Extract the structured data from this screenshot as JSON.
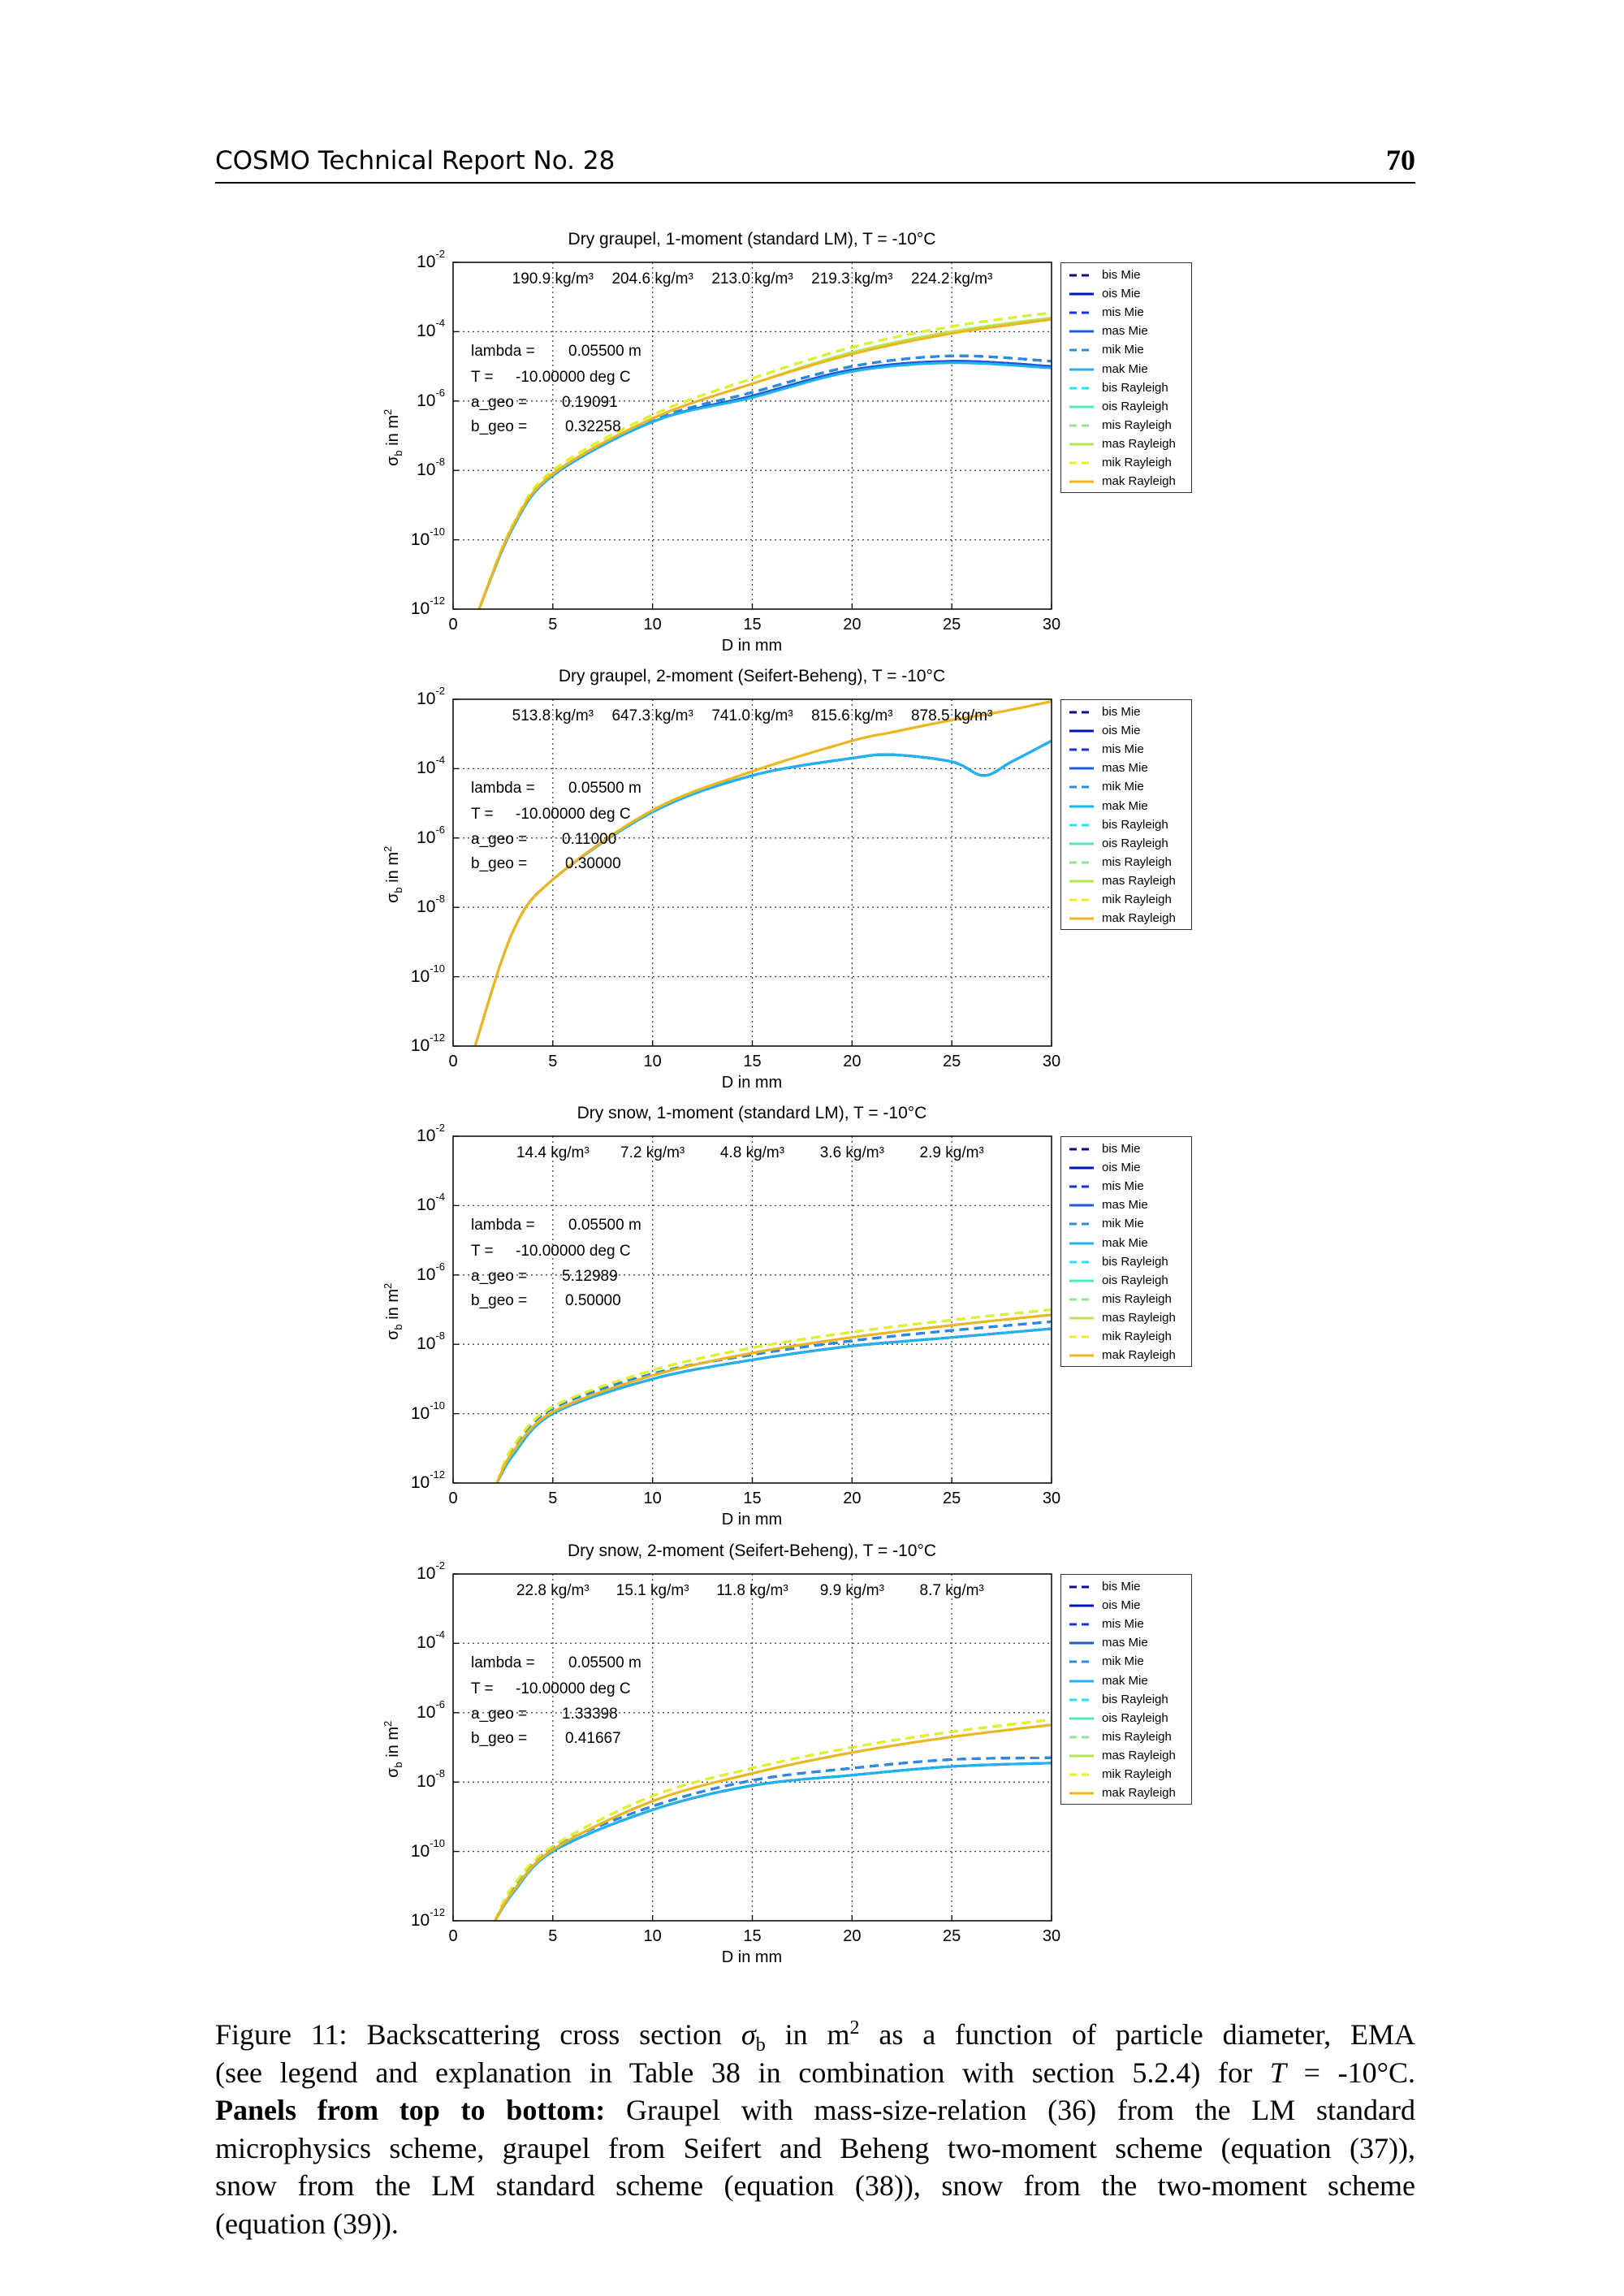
{
  "header": {
    "title": "COSMO Technical Report No. 28",
    "page_number": "70"
  },
  "caption": {
    "l1_label": "Figure 11:",
    "l1_a": "Backscattering cross section",
    "l1_sym": "σ",
    "l1_sub": "b",
    "l1_b": "in m",
    "l1_sup": "2",
    "l1_c": "as a function of particle diameter, EMA",
    "l2_a": "(see legend and explanation in Table 38 in combination with section 5.2.4) for",
    "l2_var": "T",
    "l2_b": "= -10°C.",
    "l3_bold": "Panels from top to bottom:",
    "l3_rest": "Graupel with mass-size-relation (36) from the LM standard",
    "l4": "microphysics scheme, graupel from Seifert and Beheng two-moment scheme (equation (37)),",
    "l5": "snow from the LM standard scheme (equation (38)), snow from the two-moment scheme",
    "l6": "(equation (39))."
  },
  "series_styles": [
    {
      "name": "bis Mie",
      "color": "#0a0a8c",
      "dashed": true
    },
    {
      "name": "ois Mie",
      "color": "#0014b4",
      "dashed": false
    },
    {
      "name": "mis Mie",
      "color": "#1432e6",
      "dashed": true
    },
    {
      "name": "mas Mie",
      "color": "#1e5adc",
      "dashed": false
    },
    {
      "name": "mik Mie",
      "color": "#288ce0",
      "dashed": true
    },
    {
      "name": "mak Mie",
      "color": "#1eb4f0",
      "dashed": false
    },
    {
      "name": "bis Rayleigh",
      "color": "#1ee6f0",
      "dashed": true
    },
    {
      "name": "ois Rayleigh",
      "color": "#50e6c0",
      "dashed": false
    },
    {
      "name": "mis Rayleigh",
      "color": "#8ce68c",
      "dashed": true
    },
    {
      "name": "mas Rayleigh",
      "color": "#b4e650",
      "dashed": false
    },
    {
      "name": "mik Rayleigh",
      "color": "#e6f01e",
      "dashed": true
    },
    {
      "name": "mak Rayleigh",
      "color": "#f0b41e",
      "dashed": false
    }
  ],
  "chart_data": [
    {
      "type": "line",
      "title": "Dry graupel, 1-moment (standard LM), T = -10°C",
      "xlabel": "D in mm",
      "ylabel": {
        "sym": "σ",
        "sub": "b",
        "text": " in m",
        "sup": "2"
      },
      "xlim": [
        0,
        30
      ],
      "ylim": [
        1e-12,
        0.01
      ],
      "yscale": "log",
      "grid": true,
      "legend": "outside-right",
      "x_ticks": [
        "0",
        "5",
        "10",
        "15",
        "20",
        "25",
        "30"
      ],
      "y_tick_base": "10",
      "y_tick_exponents": [
        "-2",
        "-4",
        "-6",
        "-8",
        "-10",
        "-12"
      ],
      "densities": [
        "190.9 kg/m³",
        "204.6 kg/m³",
        "213.0 kg/m³",
        "219.3 kg/m³",
        "224.2 kg/m³"
      ],
      "params": [
        {
          "label": "lambda =",
          "value": "0.05500 m"
        },
        {
          "label": "T =",
          "value": "-10.00000 deg C"
        },
        {
          "label": "a_geo =",
          "value": "0.19091"
        },
        {
          "label": "b_geo =",
          "value": "0.32258"
        }
      ],
      "x": [
        1.3,
        3,
        5,
        10,
        15,
        20,
        25,
        30
      ],
      "series": [
        {
          "name": "bis Mie",
          "y": [
            1e-12,
            2.51e-10,
            7.94e-09,
            2.82e-07,
            1.78e-06,
            1e-05,
            2e-05,
            1.41e-05
          ]
        },
        {
          "name": "ois Mie",
          "y": [
            1e-12,
            2.24e-10,
            7.08e-09,
            2.51e-07,
            1.41e-06,
            7.94e-06,
            1.41e-05,
            1e-05
          ]
        },
        {
          "name": "mis Mie",
          "y": [
            1e-12,
            2.51e-10,
            7.94e-09,
            2.82e-07,
            1.78e-06,
            1e-05,
            2e-05,
            1.41e-05
          ]
        },
        {
          "name": "mas Mie",
          "y": [
            1e-12,
            2.24e-10,
            7.08e-09,
            2.51e-07,
            1.41e-06,
            7.94e-06,
            1.41e-05,
            1e-05
          ]
        },
        {
          "name": "mik Mie",
          "y": [
            1e-12,
            2.51e-10,
            7.94e-09,
            2.82e-07,
            1.78e-06,
            1e-05,
            2e-05,
            1.41e-05
          ]
        },
        {
          "name": "mak Mie",
          "y": [
            1e-12,
            2.24e-10,
            7.08e-09,
            2.51e-07,
            1.26e-06,
            7.08e-06,
            1.26e-05,
            8.91e-06
          ]
        },
        {
          "name": "bis Rayleigh",
          "y": [
            1e-12,
            2.82e-10,
            1e-08,
            3.98e-07,
            4.47e-06,
            3.55e-05,
            0.000141,
            0.000355
          ]
        },
        {
          "name": "ois Rayleigh",
          "y": [
            1e-12,
            2.51e-10,
            7.94e-09,
            3.16e-07,
            3.16e-06,
            2.51e-05,
            0.0001,
            0.000251
          ]
        },
        {
          "name": "mis Rayleigh",
          "y": [
            1e-12,
            2.82e-10,
            1e-08,
            3.98e-07,
            4.47e-06,
            3.55e-05,
            0.000141,
            0.000355
          ]
        },
        {
          "name": "mas Rayleigh",
          "y": [
            1e-12,
            2.51e-10,
            7.94e-09,
            3.16e-07,
            3.16e-06,
            2.51e-05,
            0.0001,
            0.000251
          ]
        },
        {
          "name": "mik Rayleigh",
          "y": [
            1e-12,
            2.82e-10,
            1e-08,
            3.98e-07,
            4.47e-06,
            3.55e-05,
            0.000141,
            0.000355
          ]
        },
        {
          "name": "mak Rayleigh",
          "y": [
            1e-12,
            2.51e-10,
            7.94e-09,
            3.16e-07,
            3.16e-06,
            2.24e-05,
            8.91e-05,
            0.000224
          ]
        }
      ]
    },
    {
      "type": "line",
      "title": "Dry graupel, 2-moment (Seifert-Beheng), T = -10°C",
      "xlabel": "D in mm",
      "ylabel": {
        "sym": "σ",
        "sub": "b",
        "text": " in m",
        "sup": "2"
      },
      "xlim": [
        0,
        30
      ],
      "ylim": [
        1e-12,
        0.01
      ],
      "yscale": "log",
      "grid": true,
      "legend": "outside-right",
      "x_ticks": [
        "0",
        "5",
        "10",
        "15",
        "20",
        "25",
        "30"
      ],
      "y_tick_base": "10",
      "y_tick_exponents": [
        "-2",
        "-4",
        "-6",
        "-8",
        "-10",
        "-12"
      ],
      "densities": [
        "513.8 kg/m³",
        "647.3 kg/m³",
        "741.0 kg/m³",
        "815.6 kg/m³",
        "878.5 kg/m³"
      ],
      "params": [
        {
          "label": "lambda =",
          "value": "0.05500 m"
        },
        {
          "label": "T =",
          "value": "-10.00000 deg C"
        },
        {
          "label": "a_geo =",
          "value": "0.11000"
        },
        {
          "label": "b_geo =",
          "value": "0.30000"
        }
      ],
      "x": [
        1.1,
        3,
        5,
        10,
        15,
        20,
        22,
        25,
        26.6,
        28,
        30
      ],
      "series": [
        {
          "name": "bis Mie",
          "y": [
            1e-12,
            2e-09,
            6.31e-08,
            5.62e-06,
            6.31e-05,
            0.0002,
            0.000251,
            0.000158,
            6.31e-05,
            0.000158,
            0.000631
          ]
        },
        {
          "name": "ois Mie",
          "y": [
            1e-12,
            2e-09,
            6.31e-08,
            5.62e-06,
            6.31e-05,
            0.0002,
            0.000251,
            0.000158,
            6.31e-05,
            0.000158,
            0.000631
          ]
        },
        {
          "name": "mis Mie",
          "y": [
            1e-12,
            2e-09,
            6.31e-08,
            5.62e-06,
            6.31e-05,
            0.0002,
            0.000251,
            0.000158,
            6.31e-05,
            0.000158,
            0.000631
          ]
        },
        {
          "name": "mas Mie",
          "y": [
            1e-12,
            2e-09,
            6.31e-08,
            5.62e-06,
            6.31e-05,
            0.0002,
            0.000251,
            0.000158,
            6.31e-05,
            0.000158,
            0.000631
          ]
        },
        {
          "name": "mik Mie",
          "y": [
            1e-12,
            2e-09,
            6.31e-08,
            5.62e-06,
            6.31e-05,
            0.0002,
            0.000251,
            0.000158,
            6.31e-05,
            0.000158,
            0.000631
          ]
        },
        {
          "name": "mak Mie",
          "y": [
            1e-12,
            2e-09,
            6.31e-08,
            5.62e-06,
            6.31e-05,
            0.0002,
            0.000251,
            0.000158,
            6.31e-05,
            0.000158,
            0.000631
          ]
        },
        {
          "name": "bis Rayleigh",
          "y": [
            1e-12,
            2e-09,
            6.31e-08,
            6.31e-06,
            8.32e-05,
            0.000631,
            0.00112,
            0.00251,
            0.00355,
            0.00501,
            0.00871
          ]
        },
        {
          "name": "ois Rayleigh",
          "y": [
            1e-12,
            2e-09,
            6.31e-08,
            6.31e-06,
            8.32e-05,
            0.000631,
            0.00112,
            0.00251,
            0.00355,
            0.00501,
            0.00871
          ]
        },
        {
          "name": "mis Rayleigh",
          "y": [
            1e-12,
            2e-09,
            6.31e-08,
            6.31e-06,
            8.32e-05,
            0.000631,
            0.00112,
            0.00251,
            0.00355,
            0.00501,
            0.00871
          ]
        },
        {
          "name": "mas Rayleigh",
          "y": [
            1e-12,
            2e-09,
            6.31e-08,
            6.31e-06,
            8.32e-05,
            0.000631,
            0.00112,
            0.00251,
            0.00355,
            0.00501,
            0.00871
          ]
        },
        {
          "name": "mik Rayleigh",
          "y": [
            1e-12,
            2e-09,
            6.31e-08,
            6.31e-06,
            8.32e-05,
            0.000631,
            0.00112,
            0.00251,
            0.00355,
            0.00501,
            0.00871
          ]
        },
        {
          "name": "mak Rayleigh",
          "y": [
            1e-12,
            2e-09,
            6.31e-08,
            6.31e-06,
            8.32e-05,
            0.000631,
            0.00112,
            0.00251,
            0.00355,
            0.00501,
            0.00871
          ]
        }
      ]
    },
    {
      "type": "line",
      "title": "Dry snow, 1-moment (standard LM), T = -10°C",
      "xlabel": "D in mm",
      "ylabel": {
        "sym": "σ",
        "sub": "b",
        "text": " in m",
        "sup": "2"
      },
      "xlim": [
        0,
        30
      ],
      "ylim": [
        1e-12,
        0.01
      ],
      "yscale": "log",
      "grid": true,
      "legend": "outside-right",
      "x_ticks": [
        "0",
        "5",
        "10",
        "15",
        "20",
        "25",
        "30"
      ],
      "y_tick_base": "10",
      "y_tick_exponents": [
        "-2",
        "-4",
        "-6",
        "-8",
        "-10",
        "-12"
      ],
      "densities": [
        "14.4 kg/m³",
        "7.2 kg/m³",
        "4.8 kg/m³",
        "3.6 kg/m³",
        "2.9 kg/m³"
      ],
      "params": [
        {
          "label": "lambda =",
          "value": "0.05500 m"
        },
        {
          "label": "T =",
          "value": "-10.00000 deg C"
        },
        {
          "label": "a_geo =",
          "value": "5.12989"
        },
        {
          "label": "b_geo =",
          "value": "0.50000"
        }
      ],
      "x": [
        2.2,
        3,
        5,
        10,
        15,
        20,
        25,
        30
      ],
      "series": [
        {
          "name": "bis Mie",
          "y": [
            1e-12,
            1e-11,
            1.41e-10,
            1.41e-09,
            5.01e-09,
            1.26e-08,
            2.51e-08,
            4.47e-08
          ]
        },
        {
          "name": "ois Mie",
          "y": [
            1e-12,
            6.31e-12,
            1e-10,
            1e-09,
            3.55e-09,
            8.91e-09,
            1.58e-08,
            2.82e-08
          ]
        },
        {
          "name": "mis Mie",
          "y": [
            1e-12,
            1e-11,
            1.41e-10,
            1.41e-09,
            5.01e-09,
            1.26e-08,
            2.51e-08,
            4.47e-08
          ]
        },
        {
          "name": "mas Mie",
          "y": [
            1e-12,
            6.31e-12,
            1e-10,
            1e-09,
            3.55e-09,
            8.91e-09,
            1.58e-08,
            2.82e-08
          ]
        },
        {
          "name": "mik Mie",
          "y": [
            1e-12,
            1e-11,
            1.41e-10,
            1.41e-09,
            5.01e-09,
            1.26e-08,
            2.51e-08,
            4.47e-08
          ]
        },
        {
          "name": "mak Mie",
          "y": [
            1e-12,
            6.31e-12,
            1e-10,
            1e-09,
            3.55e-09,
            8.91e-09,
            1.58e-08,
            2.82e-08
          ]
        },
        {
          "name": "bis Rayleigh",
          "y": [
            1e-12,
            1.12e-11,
            1.58e-10,
            1.78e-09,
            7.94e-09,
            2.24e-08,
            5.01e-08,
            1e-07
          ]
        },
        {
          "name": "ois Rayleigh",
          "y": [
            1e-12,
            7.94e-12,
            1.12e-10,
            1.26e-09,
            5.62e-09,
            1.58e-08,
            3.55e-08,
            7.08e-08
          ]
        },
        {
          "name": "mis Rayleigh",
          "y": [
            1e-12,
            1.12e-11,
            1.58e-10,
            1.78e-09,
            7.94e-09,
            2.24e-08,
            5.01e-08,
            1e-07
          ]
        },
        {
          "name": "mas Rayleigh",
          "y": [
            1e-12,
            7.94e-12,
            1.12e-10,
            1.26e-09,
            5.62e-09,
            1.58e-08,
            3.55e-08,
            7.08e-08
          ]
        },
        {
          "name": "mik Rayleigh",
          "y": [
            1e-12,
            1.12e-11,
            1.58e-10,
            1.78e-09,
            7.94e-09,
            2.24e-08,
            5.01e-08,
            1e-07
          ]
        },
        {
          "name": "mak Rayleigh",
          "y": [
            1e-12,
            7.94e-12,
            1.12e-10,
            1.26e-09,
            5.62e-09,
            1.58e-08,
            3.55e-08,
            7.08e-08
          ]
        }
      ]
    },
    {
      "type": "line",
      "title": "Dry snow, 2-moment (Seifert-Beheng), T = -10°C",
      "xlabel": "D in mm",
      "ylabel": {
        "sym": "σ",
        "sub": "b",
        "text": " in m",
        "sup": "2"
      },
      "xlim": [
        0,
        30
      ],
      "ylim": [
        1e-12,
        0.01
      ],
      "yscale": "log",
      "grid": true,
      "legend": "outside-right",
      "x_ticks": [
        "0",
        "5",
        "10",
        "15",
        "20",
        "25",
        "30"
      ],
      "y_tick_base": "10",
      "y_tick_exponents": [
        "-2",
        "-4",
        "-6",
        "-8",
        "-10",
        "-12"
      ],
      "densities": [
        "22.8 kg/m³",
        "15.1 kg/m³",
        "11.8 kg/m³",
        "9.9 kg/m³",
        "8.7 kg/m³"
      ],
      "params": [
        {
          "label": "lambda =",
          "value": "0.05500 m"
        },
        {
          "label": "T =",
          "value": "-10.00000 deg C"
        },
        {
          "label": "a_geo =",
          "value": "1.33398"
        },
        {
          "label": "b_geo =",
          "value": "0.41667"
        }
      ],
      "x": [
        2.1,
        3,
        5,
        10,
        15,
        20,
        25,
        30
      ],
      "series": [
        {
          "name": "bis Mie",
          "y": [
            1e-12,
            7.94e-12,
            1.26e-10,
            2e-09,
            1.12e-08,
            2.51e-08,
            4.47e-08,
            5.01e-08
          ]
        },
        {
          "name": "ois Mie",
          "y": [
            1e-12,
            6.31e-12,
            1e-10,
            1.58e-09,
            7.94e-09,
            1.58e-08,
            2.82e-08,
            3.55e-08
          ]
        },
        {
          "name": "mis Mie",
          "y": [
            1e-12,
            7.94e-12,
            1.26e-10,
            2e-09,
            1.12e-08,
            2.51e-08,
            4.47e-08,
            5.01e-08
          ]
        },
        {
          "name": "mas Mie",
          "y": [
            1e-12,
            6.31e-12,
            1e-10,
            1.58e-09,
            7.94e-09,
            1.58e-08,
            2.82e-08,
            3.55e-08
          ]
        },
        {
          "name": "mik Mie",
          "y": [
            1e-12,
            7.94e-12,
            1.26e-10,
            2e-09,
            1.12e-08,
            2.51e-08,
            4.47e-08,
            5.01e-08
          ]
        },
        {
          "name": "mak Mie",
          "y": [
            1e-12,
            6.31e-12,
            1e-10,
            1.58e-09,
            7.94e-09,
            1.58e-08,
            2.82e-08,
            3.55e-08
          ]
        },
        {
          "name": "bis Rayleigh",
          "y": [
            1e-12,
            1e-11,
            1.41e-10,
            3.98e-09,
            2.51e-08,
            1e-07,
            2.82e-07,
            6.31e-07
          ]
        },
        {
          "name": "ois Rayleigh",
          "y": [
            1e-12,
            7.08e-12,
            1.12e-10,
            2.82e-09,
            1.78e-08,
            7.08e-08,
            2e-07,
            4.47e-07
          ]
        },
        {
          "name": "mis Rayleigh",
          "y": [
            1e-12,
            1e-11,
            1.41e-10,
            3.98e-09,
            2.51e-08,
            1e-07,
            2.82e-07,
            6.31e-07
          ]
        },
        {
          "name": "mas Rayleigh",
          "y": [
            1e-12,
            7.08e-12,
            1.12e-10,
            2.82e-09,
            1.78e-08,
            7.08e-08,
            2e-07,
            4.47e-07
          ]
        },
        {
          "name": "mik Rayleigh",
          "y": [
            1e-12,
            1e-11,
            1.41e-10,
            3.98e-09,
            2.51e-08,
            1e-07,
            2.82e-07,
            6.31e-07
          ]
        },
        {
          "name": "mak Rayleigh",
          "y": [
            1e-12,
            7.08e-12,
            1.12e-10,
            2.82e-09,
            1.78e-08,
            7.08e-08,
            2e-07,
            4.47e-07
          ]
        }
      ]
    }
  ]
}
